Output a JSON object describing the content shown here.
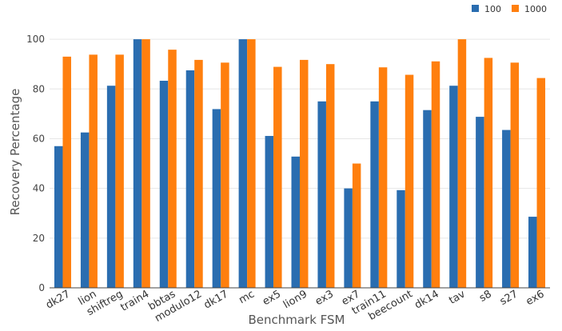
{
  "chart_data": {
    "type": "bar",
    "title": "",
    "xlabel": "Benchmark FSM",
    "ylabel": "Recovery Percentage",
    "ylim": [
      0,
      110
    ],
    "yticks": [
      0,
      20,
      40,
      60,
      80,
      100
    ],
    "grid": true,
    "legend_position": "top-right",
    "categories": [
      "dk27",
      "lion",
      "shiftreg",
      "train4",
      "bbtas",
      "modulo12",
      "dk17",
      "mc",
      "ex5",
      "lion9",
      "ex3",
      "ex7",
      "train11",
      "beecount",
      "dk14",
      "tav",
      "s8",
      "s27",
      "ex6"
    ],
    "series": [
      {
        "name": "100",
        "color": "#2a6db0",
        "values": [
          57,
          62.5,
          81.3,
          100,
          83.3,
          87.5,
          71.9,
          100,
          61.1,
          52.8,
          75,
          40,
          75,
          39.3,
          71.5,
          81.3,
          68.8,
          63.5,
          28.6
        ]
      },
      {
        "name": "1000",
        "color": "#ff7f0e",
        "values": [
          93,
          93.8,
          93.8,
          100,
          95.8,
          91.7,
          90.6,
          100,
          88.9,
          91.7,
          90,
          50,
          88.7,
          85.7,
          91.1,
          100,
          92.5,
          90.6,
          84.4
        ]
      }
    ]
  }
}
